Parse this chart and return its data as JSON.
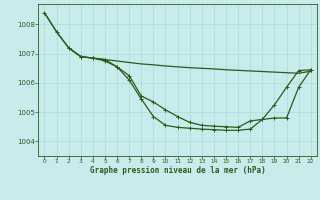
{
  "title": "Graphe pression niveau de la mer (hPa)",
  "background_color": "#c8ecec",
  "grid_color": "#b0d8d8",
  "line_color": "#2d5a1b",
  "xlim": [
    -0.5,
    22.5
  ],
  "ylim": [
    1003.5,
    1008.7
  ],
  "yticks": [
    1004,
    1005,
    1006,
    1007,
    1008
  ],
  "xticks": [
    0,
    1,
    2,
    3,
    4,
    5,
    6,
    7,
    8,
    9,
    10,
    11,
    12,
    13,
    14,
    15,
    16,
    17,
    18,
    19,
    20,
    21,
    22
  ],
  "series": [
    {
      "x": [
        0,
        1,
        2,
        3,
        4,
        5,
        6,
        7,
        8,
        9,
        10,
        11,
        12,
        13,
        14,
        15,
        16,
        17,
        18,
        19,
        20,
        21,
        22
      ],
      "y": [
        1008.4,
        1007.75,
        1007.2,
        1006.9,
        1006.85,
        1006.8,
        1006.75,
        1006.7,
        1006.65,
        1006.62,
        1006.58,
        1006.55,
        1006.52,
        1006.5,
        1006.48,
        1006.45,
        1006.43,
        1006.41,
        1006.39,
        1006.37,
        1006.35,
        1006.33,
        1006.4
      ],
      "marker": false,
      "lw": 0.9
    },
    {
      "x": [
        2,
        3,
        4,
        5,
        6,
        7,
        8,
        9,
        10,
        11,
        12,
        13,
        14,
        15,
        16,
        17,
        18,
        19,
        20,
        21,
        22
      ],
      "y": [
        1007.2,
        1006.9,
        1006.85,
        1006.8,
        1006.55,
        1006.25,
        1005.55,
        1005.35,
        1005.08,
        1004.85,
        1004.65,
        1004.55,
        1004.52,
        1004.5,
        1004.48,
        1004.7,
        1004.75,
        1004.8,
        1004.8,
        1005.85,
        1006.45
      ],
      "marker": true,
      "lw": 0.9
    },
    {
      "x": [
        0,
        1,
        2,
        3,
        4,
        5,
        6,
        7,
        8,
        9,
        10,
        11,
        12,
        13,
        14,
        15,
        16,
        17,
        18,
        19,
        20,
        21,
        22
      ],
      "y": [
        1008.4,
        1007.75,
        1007.2,
        1006.9,
        1006.85,
        1006.75,
        1006.55,
        1006.1,
        1005.45,
        1004.85,
        1004.55,
        1004.48,
        1004.45,
        1004.42,
        1004.4,
        1004.38,
        1004.38,
        1004.42,
        1004.75,
        1005.25,
        1005.85,
        1006.42,
        1006.45
      ],
      "marker": true,
      "lw": 0.9
    }
  ]
}
